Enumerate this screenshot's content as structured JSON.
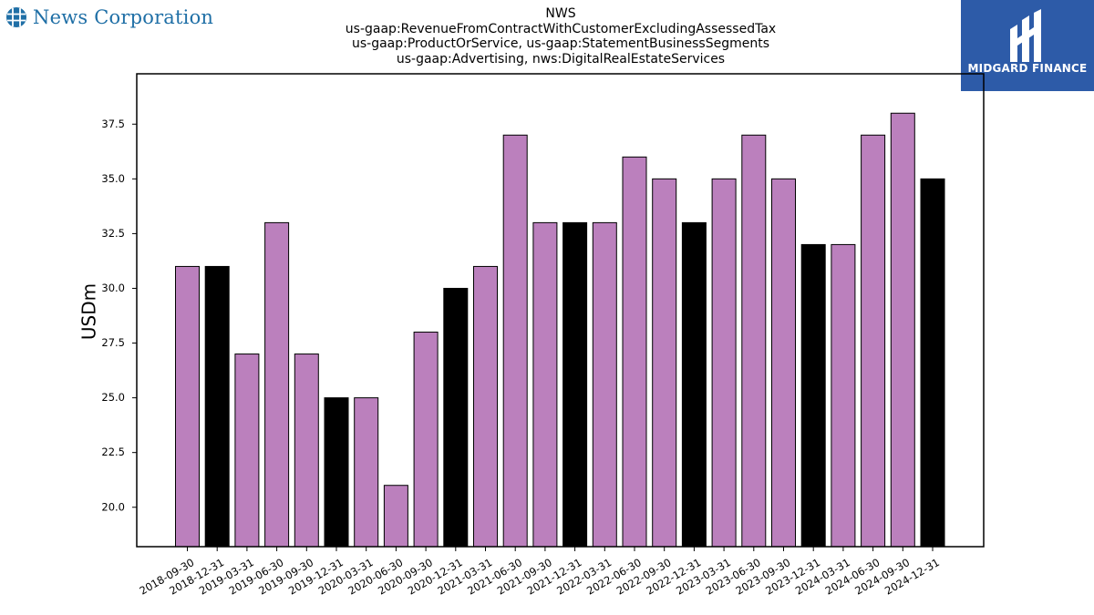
{
  "header": {
    "left_logo": {
      "icon": "globe-grid-icon",
      "text": "News Corporation",
      "color": "#1f6fa6"
    },
    "right_logo": {
      "icon": "midgard-mark-icon",
      "text": "MIDGARD FINANCE",
      "bg_color": "#2d5ba8"
    },
    "title_lines": [
      "NWS",
      "us-gaap:RevenueFromContractWithCustomerExcludingAssessedTax",
      "us-gaap:ProductOrService, us-gaap:StatementBusinessSegments",
      "us-gaap:Advertising, nws:DigitalRealEstateServices"
    ]
  },
  "chart_data": {
    "type": "bar",
    "title": "",
    "xlabel": "",
    "ylabel": "USDm",
    "ylim": [
      18.2,
      39.8
    ],
    "yticks": [
      20.0,
      22.5,
      25.0,
      27.5,
      30.0,
      32.5,
      35.0,
      37.5
    ],
    "grid": false,
    "colors": {
      "quarter": "#bb80bd",
      "year_end": "#000000",
      "edge": "#000000"
    },
    "categories": [
      "2018-09-30",
      "2018-12-31",
      "2019-03-31",
      "2019-06-30",
      "2019-09-30",
      "2019-12-31",
      "2020-03-31",
      "2020-06-30",
      "2020-09-30",
      "2020-12-31",
      "2021-03-31",
      "2021-06-30",
      "2021-09-30",
      "2021-12-31",
      "2022-03-31",
      "2022-06-30",
      "2022-09-30",
      "2022-12-31",
      "2023-03-31",
      "2023-06-30",
      "2023-09-30",
      "2023-12-31",
      "2024-03-31",
      "2024-06-30",
      "2024-09-30",
      "2024-12-31"
    ],
    "values": [
      31,
      31,
      27,
      33,
      27,
      25,
      25,
      21,
      28,
      30,
      31,
      37,
      33,
      33,
      33,
      36,
      35,
      33,
      35,
      37,
      35,
      32,
      32,
      37,
      38,
      35
    ],
    "bar_color_keys": [
      "quarter",
      "year_end",
      "quarter",
      "quarter",
      "quarter",
      "year_end",
      "quarter",
      "quarter",
      "quarter",
      "year_end",
      "quarter",
      "quarter",
      "quarter",
      "year_end",
      "quarter",
      "quarter",
      "quarter",
      "year_end",
      "quarter",
      "quarter",
      "quarter",
      "year_end",
      "quarter",
      "quarter",
      "quarter",
      "year_end"
    ]
  }
}
